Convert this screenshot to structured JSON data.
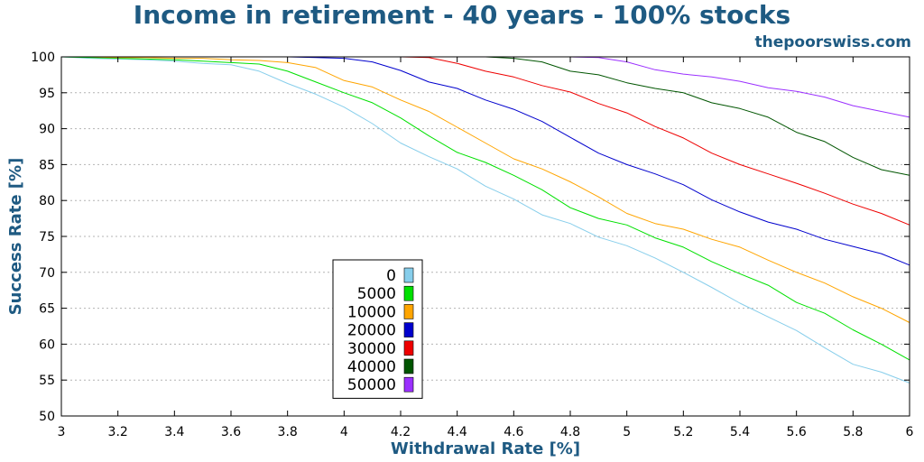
{
  "header": {
    "site": "thepoorswiss.com"
  },
  "chart_data": {
    "type": "line",
    "title": "Income in retirement - 40 years - 100% stocks",
    "xlabel": "Withdrawal Rate [%]",
    "ylabel": "Success Rate [%]",
    "xlim": [
      3,
      6
    ],
    "ylim": [
      50,
      100
    ],
    "xticks": [
      "3",
      "3.2",
      "3.4",
      "3.6",
      "3.8",
      "4",
      "4.2",
      "4.4",
      "4.6",
      "4.8",
      "5",
      "5.2",
      "5.4",
      "5.6",
      "5.8",
      "6"
    ],
    "yticks": [
      "50",
      "55",
      "60",
      "65",
      "70",
      "75",
      "80",
      "85",
      "90",
      "95",
      "100"
    ],
    "grid": "horizontal dotted",
    "legend_position": "lower-center",
    "x": [
      3.0,
      3.1,
      3.2,
      3.3,
      3.4,
      3.5,
      3.6,
      3.7,
      3.8,
      3.9,
      4.0,
      4.1,
      4.2,
      4.3,
      4.4,
      4.5,
      4.6,
      4.7,
      4.8,
      4.9,
      5.0,
      5.1,
      5.2,
      5.3,
      5.4,
      5.5,
      5.6,
      5.7,
      5.8,
      5.9,
      6.0
    ],
    "series": [
      {
        "name": "0",
        "color": "#87ceeb",
        "values": [
          100,
          99.8,
          99.7,
          99.6,
          99.4,
          99.1,
          98.9,
          98.0,
          96.3,
          94.8,
          93.0,
          90.7,
          88.0,
          86.1,
          84.4,
          82.0,
          80.2,
          78.0,
          76.8,
          74.9,
          73.7,
          72.0,
          70.0,
          67.9,
          65.7,
          63.8,
          61.9,
          59.5,
          57.2,
          56.1,
          54.6
        ]
      },
      {
        "name": "5000",
        "color": "#00e000",
        "values": [
          100,
          99.9,
          99.8,
          99.7,
          99.6,
          99.4,
          99.2,
          99.0,
          98.0,
          96.5,
          95.0,
          93.6,
          91.5,
          89.0,
          86.7,
          85.3,
          83.5,
          81.5,
          79.0,
          77.5,
          76.6,
          74.8,
          73.5,
          71.5,
          69.8,
          68.2,
          65.8,
          64.3,
          62.0,
          60.0,
          57.8
        ]
      },
      {
        "name": "10000",
        "color": "#ffa500",
        "values": [
          100,
          100,
          99.9,
          99.9,
          99.8,
          99.8,
          99.6,
          99.5,
          99.2,
          98.5,
          96.7,
          95.8,
          94.0,
          92.4,
          90.2,
          88.0,
          85.8,
          84.4,
          82.6,
          80.5,
          78.2,
          76.8,
          76.0,
          74.6,
          73.5,
          71.7,
          70.0,
          68.5,
          66.6,
          65.0,
          63.0
        ]
      },
      {
        "name": "20000",
        "color": "#0000cd",
        "values": [
          100,
          100,
          100,
          100,
          100,
          100,
          100,
          100,
          100,
          99.9,
          99.8,
          99.3,
          98.1,
          96.5,
          95.6,
          94.0,
          92.7,
          91.0,
          88.8,
          86.6,
          85.0,
          83.7,
          82.2,
          80.1,
          78.4,
          77.0,
          76.0,
          74.6,
          73.6,
          72.6,
          71.0
        ]
      },
      {
        "name": "30000",
        "color": "#ee0000",
        "values": [
          100,
          100,
          100,
          100,
          100,
          100,
          100,
          100,
          100,
          100,
          100,
          100,
          100,
          99.9,
          99.1,
          98.0,
          97.2,
          96.0,
          95.1,
          93.5,
          92.2,
          90.3,
          88.7,
          86.6,
          85.0,
          83.7,
          82.4,
          81.0,
          79.5,
          78.2,
          76.6
        ]
      },
      {
        "name": "40000",
        "color": "#005500",
        "values": [
          100,
          100,
          100,
          100,
          100,
          100,
          100,
          100,
          100,
          100,
          100,
          100,
          100,
          100,
          100,
          100,
          99.8,
          99.3,
          98.0,
          97.5,
          96.4,
          95.6,
          95.0,
          93.6,
          92.8,
          91.6,
          89.5,
          88.2,
          86.0,
          84.3,
          83.5
        ]
      },
      {
        "name": "50000",
        "color": "#9b30ff",
        "values": [
          100,
          100,
          100,
          100,
          100,
          100,
          100,
          100,
          100,
          100,
          100,
          100,
          100,
          100,
          100,
          100,
          100,
          100,
          100,
          99.9,
          99.3,
          98.2,
          97.6,
          97.2,
          96.6,
          95.7,
          95.2,
          94.4,
          93.2,
          92.4,
          91.6
        ]
      }
    ]
  }
}
